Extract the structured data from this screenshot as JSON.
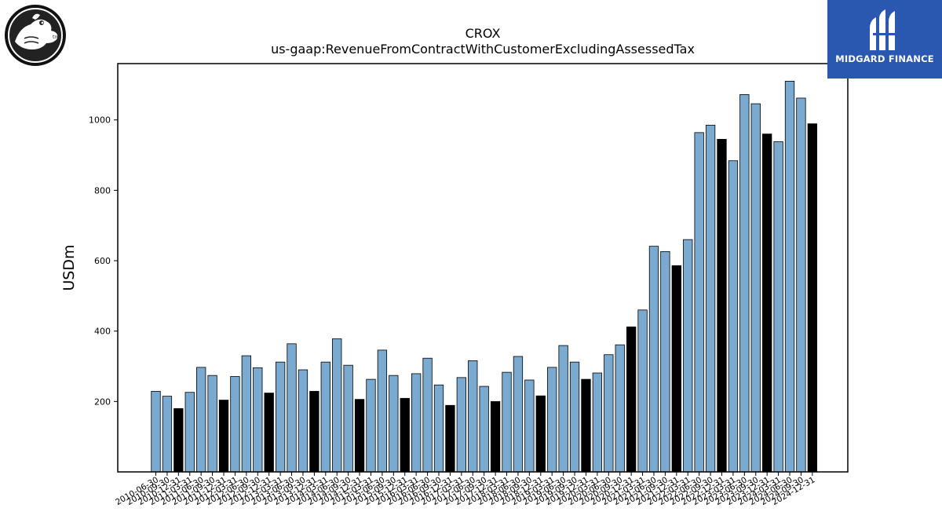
{
  "chart_data": {
    "type": "bar",
    "title": "CROX",
    "subtitle": "us-gaap:RevenueFromContractWithCustomerExcludingAssessedTax",
    "xlabel": "",
    "ylabel": "USDm",
    "ylim": [
      0,
      1160
    ],
    "yticks": [
      200,
      400,
      600,
      800,
      1000
    ],
    "grid": false,
    "colors": {
      "quarter": "#7aaad0",
      "annual": "#000000",
      "edge": "#000000"
    },
    "categories": [
      "2010-06-30",
      "2010-09-30",
      "2010-12-31",
      "2011-03-31",
      "2011-06-30",
      "2011-09-30",
      "2011-12-31",
      "2012-03-31",
      "2012-06-30",
      "2012-09-30",
      "2012-12-31",
      "2013-03-31",
      "2013-06-30",
      "2013-09-30",
      "2013-12-31",
      "2014-03-31",
      "2014-06-30",
      "2014-09-30",
      "2014-12-31",
      "2015-03-31",
      "2015-06-30",
      "2015-09-30",
      "2015-12-31",
      "2016-03-31",
      "2016-06-30",
      "2016-09-30",
      "2016-12-31",
      "2017-03-31",
      "2017-06-30",
      "2017-09-30",
      "2017-12-31",
      "2018-03-31",
      "2018-06-30",
      "2018-09-30",
      "2018-12-31",
      "2019-03-31",
      "2019-06-30",
      "2019-09-30",
      "2019-12-31",
      "2020-03-31",
      "2020-06-30",
      "2020-09-30",
      "2020-12-31",
      "2021-03-31",
      "2021-06-30",
      "2021-09-30",
      "2021-12-31",
      "2022-03-31",
      "2022-06-30",
      "2022-09-30",
      "2022-12-31",
      "2023-03-31",
      "2023-06-30",
      "2023-09-30",
      "2023-12-31",
      "2024-03-31",
      "2024-06-30",
      "2024-09-30",
      "2024-12-31"
    ],
    "values": [
      229,
      215,
      180,
      226,
      297,
      274,
      204,
      271,
      330,
      296,
      224,
      312,
      364,
      290,
      229,
      312,
      378,
      303,
      206,
      263,
      346,
      274,
      209,
      279,
      323,
      247,
      189,
      268,
      316,
      243,
      200,
      283,
      328,
      261,
      216,
      297,
      359,
      312,
      263,
      281,
      333,
      361,
      412,
      460,
      641,
      626,
      586,
      660,
      964,
      985,
      945,
      884,
      1072,
      1046,
      960,
      938,
      1110,
      1062,
      989
    ],
    "annual_flags": [
      0,
      0,
      1,
      0,
      0,
      0,
      1,
      0,
      0,
      0,
      1,
      0,
      0,
      0,
      1,
      0,
      0,
      0,
      1,
      0,
      0,
      0,
      1,
      0,
      0,
      0,
      1,
      0,
      0,
      0,
      1,
      0,
      0,
      0,
      1,
      0,
      0,
      0,
      1,
      0,
      0,
      0,
      1,
      0,
      0,
      0,
      1,
      0,
      0,
      0,
      1,
      0,
      0,
      0,
      1,
      0,
      0,
      0,
      1
    ]
  },
  "branding": {
    "right_logo_text": "MIDGARD FINANCE"
  }
}
